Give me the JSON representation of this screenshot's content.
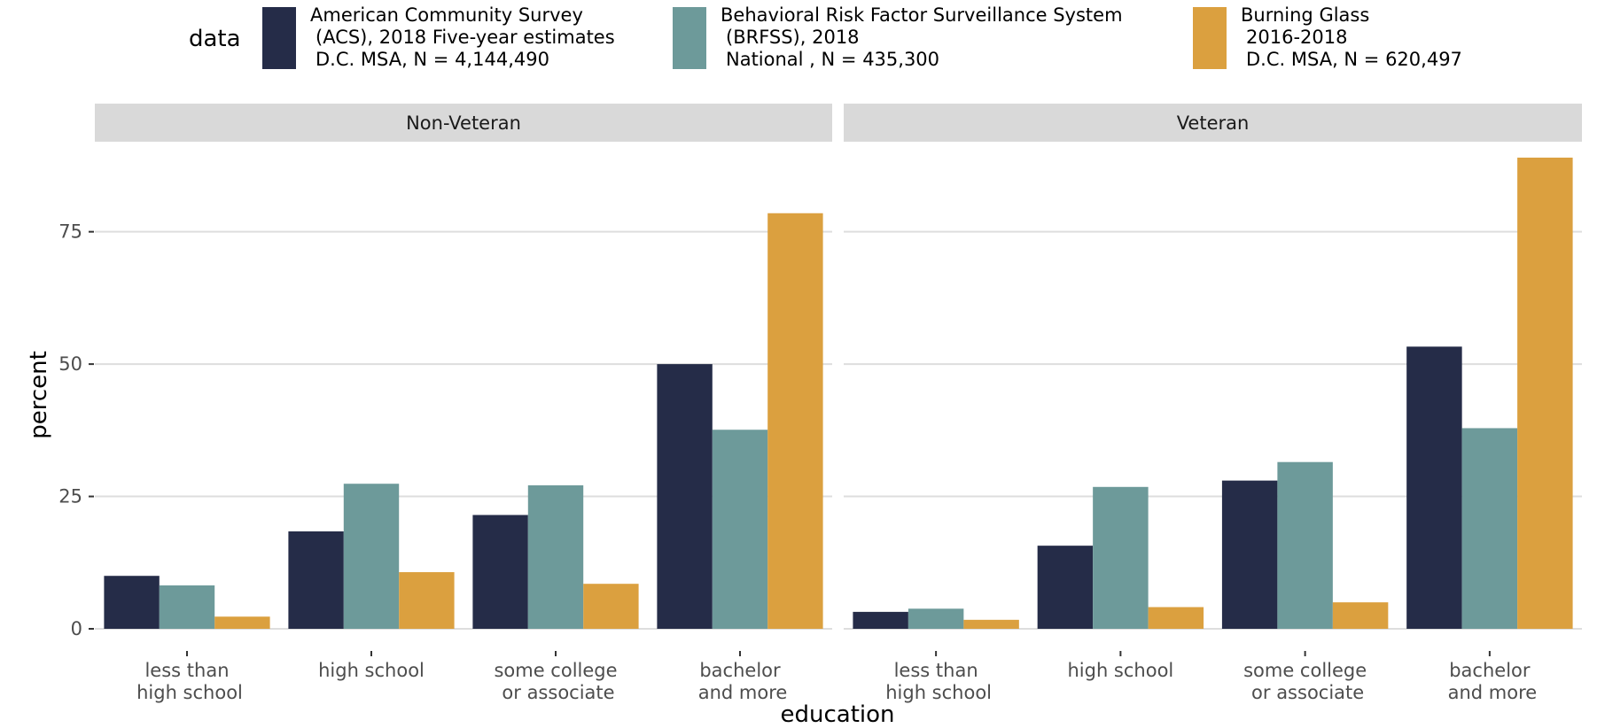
{
  "chart_data": {
    "type": "bar",
    "xlabel": "education",
    "ylabel": "percent",
    "ylim": [
      0,
      90
    ],
    "yticks": [
      0,
      25,
      50,
      75
    ],
    "grid": true,
    "legend_placement": "top",
    "legend_title": "data",
    "categories": [
      "less than\nhigh school",
      "high school",
      "some college\nor associate",
      "bachelor\nand more"
    ],
    "series": [
      {
        "name": "American Community Survey\n(ACS), 2018 Five-year estimates\nD.C. MSA, N = 4,144,490",
        "color": "#252c48"
      },
      {
        "name": "Behavioral Risk Factor Surveillance System\n(BRFSS), 2018\nNational , N = 435,300",
        "color": "#6d9a9a"
      },
      {
        "name": "Burning Glass\n2016-2018\nD.C. MSA, N = 620,497",
        "color": "#dba03f"
      }
    ],
    "facets": [
      {
        "label": "Non-Veteran",
        "values": [
          [
            10,
            18.4,
            21.5,
            50
          ],
          [
            8.2,
            27.4,
            27.1,
            37.6
          ],
          [
            2.3,
            10.7,
            8.5,
            78.5
          ]
        ]
      },
      {
        "label": "Veteran",
        "values": [
          [
            3.2,
            15.7,
            28,
            53.3
          ],
          [
            3.8,
            26.8,
            31.5,
            37.9
          ],
          [
            1.7,
            4.1,
            5,
            89
          ]
        ]
      }
    ]
  }
}
